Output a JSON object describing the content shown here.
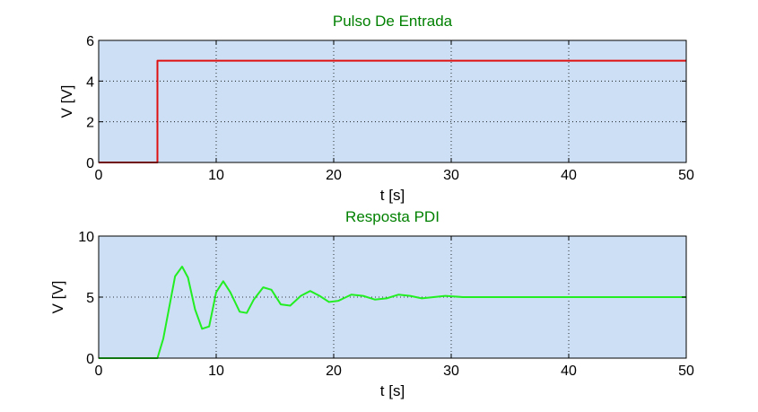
{
  "chart_data": [
    {
      "type": "line",
      "title": "Pulso De Entrada",
      "xlabel": "t [s]",
      "ylabel": "V [V]",
      "xlim": [
        0,
        50
      ],
      "ylim": [
        0,
        6
      ],
      "xticks": [
        "0",
        "10",
        "20",
        "30",
        "40",
        "50"
      ],
      "yticks": [
        "0",
        "2",
        "4",
        "6"
      ],
      "grid": true,
      "background_color": "#cddff5",
      "series": [
        {
          "color": "#e01010",
          "x": [
            0,
            5,
            5,
            50
          ],
          "y": [
            0,
            0,
            5,
            5
          ]
        }
      ]
    },
    {
      "type": "line",
      "title": "Resposta PDI",
      "xlabel": "t [s]",
      "ylabel": "V [V]",
      "xlim": [
        0,
        50
      ],
      "ylim": [
        0,
        10
      ],
      "xticks": [
        "0",
        "10",
        "20",
        "30",
        "40",
        "50"
      ],
      "yticks": [
        "0",
        "5",
        "10"
      ],
      "grid": true,
      "background_color": "#cddff5",
      "series": [
        {
          "color": "#22ee22",
          "x": [
            0,
            5,
            5.5,
            6.5,
            7.1,
            7.6,
            8.2,
            8.8,
            9.4,
            10,
            10.6,
            11.2,
            12,
            12.6,
            13.2,
            14,
            14.7,
            15.5,
            16.3,
            17.2,
            18,
            18.8,
            19.6,
            20.4,
            21.5,
            22.5,
            23.5,
            24.5,
            25.5,
            26.5,
            27.5,
            28.5,
            29.5,
            31,
            33,
            35,
            40,
            45,
            50
          ],
          "y": [
            0,
            0,
            1.6,
            6.7,
            7.5,
            6.6,
            4.0,
            2.4,
            2.6,
            5.4,
            6.3,
            5.4,
            3.8,
            3.7,
            4.8,
            5.8,
            5.6,
            4.4,
            4.3,
            5.1,
            5.5,
            5.1,
            4.6,
            4.7,
            5.2,
            5.1,
            4.8,
            4.9,
            5.2,
            5.1,
            4.9,
            5.0,
            5.1,
            5.0,
            5.0,
            5.0,
            5.0,
            5.0,
            5.0
          ]
        }
      ]
    }
  ]
}
